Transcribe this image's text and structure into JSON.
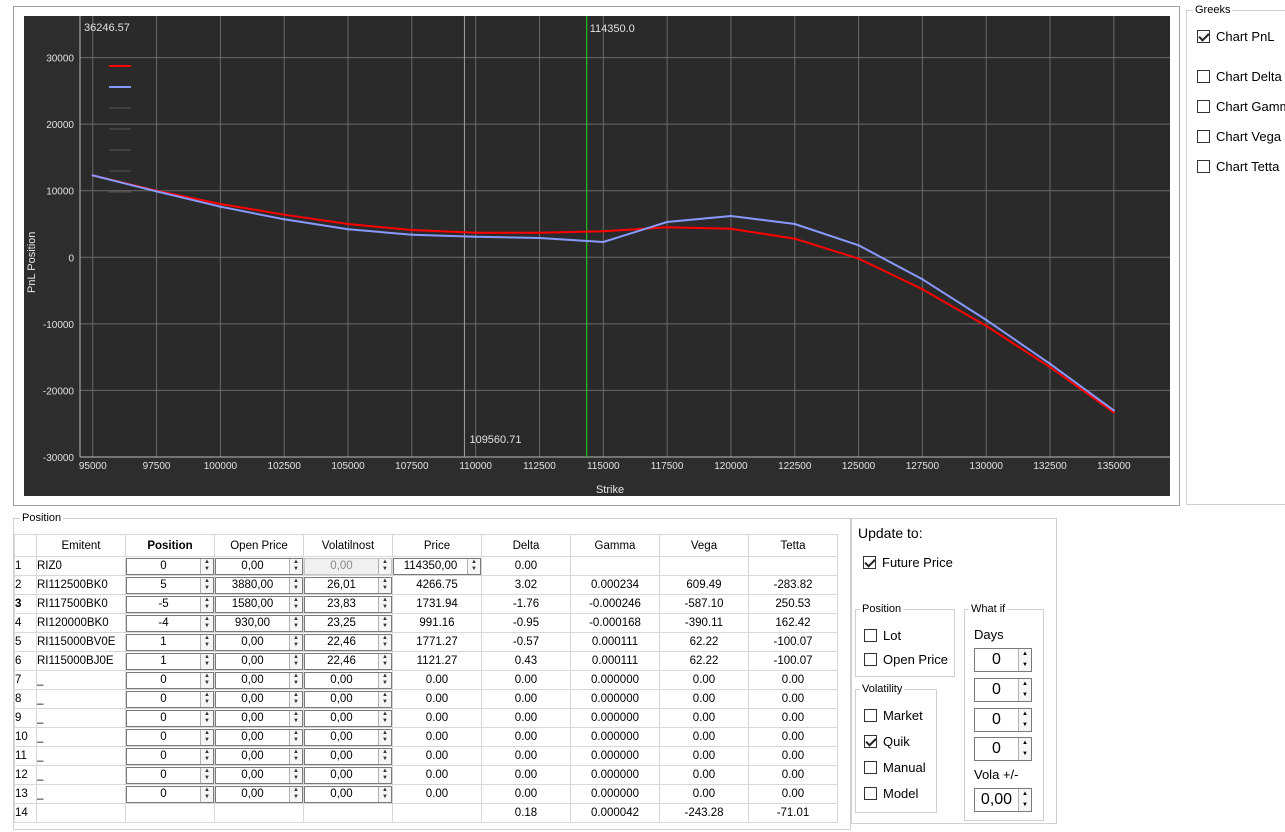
{
  "chart_data": {
    "type": "line",
    "xlabel": "Strike",
    "ylabel": "PnL Position",
    "xlim": [
      94500,
      137200
    ],
    "ylim": [
      -30000,
      36246.57
    ],
    "x_ticks": [
      "95000",
      "97500",
      "100000",
      "102500",
      "105000",
      "107500",
      "110000",
      "112500",
      "115000",
      "117500",
      "120000",
      "122500",
      "125000",
      "127500",
      "130000",
      "132500",
      "135000"
    ],
    "y_ticks": [
      "30000",
      "20000",
      "10000",
      "0",
      "-10000",
      "-20000",
      "-30000"
    ],
    "top_value_label": "36246.57",
    "vline_green": {
      "x": 114350,
      "label": "114350.0"
    },
    "vline_gray": {
      "x": 109560.71,
      "label": "109560.71"
    },
    "series": [
      {
        "color": "#ff0000",
        "x": [
          95000,
          97500,
          100000,
          102500,
          105000,
          107500,
          110000,
          112500,
          115000,
          117500,
          120000,
          122500,
          125000,
          127500,
          130000,
          132500,
          135000
        ],
        "values": [
          12300,
          10000,
          8000,
          6400,
          5000,
          4100,
          3700,
          3700,
          3900,
          4500,
          4300,
          2800,
          -200,
          -4800,
          -10300,
          -16500,
          -23300
        ]
      },
      {
        "color": "#8899ff",
        "x": [
          95000,
          97500,
          100000,
          102500,
          105000,
          107500,
          110000,
          112500,
          115000,
          117500,
          120000,
          122500,
          125000,
          127500,
          130000,
          132500,
          135000
        ],
        "values": [
          12300,
          9900,
          7600,
          5700,
          4200,
          3400,
          3100,
          2900,
          2300,
          5300,
          6200,
          5000,
          1800,
          -3300,
          -9400,
          -16000,
          -23000
        ]
      }
    ]
  },
  "greeks": {
    "title": "Greeks",
    "items": [
      {
        "label": "Chart PnL",
        "checked": true
      },
      {
        "label": "Chart Delta",
        "checked": false
      },
      {
        "label": "Chart Gamma",
        "checked": false
      },
      {
        "label": "Chart Vega",
        "checked": false
      },
      {
        "label": "Chart Tetta",
        "checked": false
      }
    ]
  },
  "position": {
    "title": "Position",
    "headers": [
      "Emitent",
      "Position",
      "Open Price",
      "Volatilnost",
      "Price",
      "Delta",
      "Gamma",
      "Vega",
      "Tetta"
    ],
    "rows": [
      {
        "n": "1",
        "emitent": "RIZ0",
        "position": "0",
        "open_price": "0,00",
        "vol": "0,00",
        "price": "114350,00",
        "delta": "0.00",
        "gamma": "",
        "vega": "",
        "tetta": ""
      },
      {
        "n": "2",
        "emitent": "RI112500BK0",
        "position": "5",
        "open_price": "3880,00",
        "vol": "26,01",
        "price": "4266.75",
        "delta": "3.02",
        "gamma": "0.000234",
        "vega": "609.49",
        "tetta": "-283.82"
      },
      {
        "n": "3",
        "emitent": "RI117500BK0",
        "position": "-5",
        "open_price": "1580,00",
        "vol": "23,83",
        "price": "1731.94",
        "delta": "-1.76",
        "gamma": "-0.000246",
        "vega": "-587.10",
        "tetta": "250.53"
      },
      {
        "n": "4",
        "emitent": "RI120000BK0",
        "position": "-4",
        "open_price": "930,00",
        "vol": "23,25",
        "price": "991.16",
        "delta": "-0.95",
        "gamma": "-0.000168",
        "vega": "-390.11",
        "tetta": "162.42"
      },
      {
        "n": "5",
        "emitent": "RI115000BV0E",
        "position": "1",
        "open_price": "0,00",
        "vol": "22,46",
        "price": "1771.27",
        "delta": "-0.57",
        "gamma": "0.000111",
        "vega": "62.22",
        "tetta": "-100.07"
      },
      {
        "n": "6",
        "emitent": "RI115000BJ0E",
        "position": "1",
        "open_price": "0,00",
        "vol": "22,46",
        "price": "1121.27",
        "delta": "0.43",
        "gamma": "0.000111",
        "vega": "62.22",
        "tetta": "-100.07"
      },
      {
        "n": "7",
        "emitent": "_",
        "position": "0",
        "open_price": "0,00",
        "vol": "0,00",
        "price": "0.00",
        "delta": "0.00",
        "gamma": "0.000000",
        "vega": "0.00",
        "tetta": "0.00"
      },
      {
        "n": "8",
        "emitent": "_",
        "position": "0",
        "open_price": "0,00",
        "vol": "0,00",
        "price": "0.00",
        "delta": "0.00",
        "gamma": "0.000000",
        "vega": "0.00",
        "tetta": "0.00"
      },
      {
        "n": "9",
        "emitent": "_",
        "position": "0",
        "open_price": "0,00",
        "vol": "0,00",
        "price": "0.00",
        "delta": "0.00",
        "gamma": "0.000000",
        "vega": "0.00",
        "tetta": "0.00"
      },
      {
        "n": "10",
        "emitent": "_",
        "position": "0",
        "open_price": "0,00",
        "vol": "0,00",
        "price": "0.00",
        "delta": "0.00",
        "gamma": "0.000000",
        "vega": "0.00",
        "tetta": "0.00"
      },
      {
        "n": "11",
        "emitent": "_",
        "position": "0",
        "open_price": "0,00",
        "vol": "0,00",
        "price": "0.00",
        "delta": "0.00",
        "gamma": "0.000000",
        "vega": "0.00",
        "tetta": "0.00"
      },
      {
        "n": "12",
        "emitent": "_",
        "position": "0",
        "open_price": "0,00",
        "vol": "0,00",
        "price": "0.00",
        "delta": "0.00",
        "gamma": "0.000000",
        "vega": "0.00",
        "tetta": "0.00"
      },
      {
        "n": "13",
        "emitent": "_",
        "position": "0",
        "open_price": "0,00",
        "vol": "0,00",
        "price": "0.00",
        "delta": "0.00",
        "gamma": "0.000000",
        "vega": "0.00",
        "tetta": "0.00"
      }
    ],
    "total": {
      "n": "14",
      "delta": "0.18",
      "gamma": "0.000042",
      "vega": "-243.28",
      "tetta": "-71.01"
    }
  },
  "update": {
    "title": "Update to:",
    "future_price": {
      "label": "Future Price",
      "checked": true
    },
    "position_group": {
      "title": "Position",
      "lot": {
        "label": "Lot",
        "checked": false
      },
      "open_price": {
        "label": "Open Price",
        "checked": false
      }
    },
    "volatility_group": {
      "title": "Volatility",
      "items": [
        {
          "label": "Market",
          "checked": false
        },
        {
          "label": "Quik",
          "checked": true
        },
        {
          "label": "Manual",
          "checked": false
        },
        {
          "label": "Model",
          "checked": false
        }
      ]
    },
    "whatif_group": {
      "title": "What if",
      "days_label": "Days",
      "days_values": [
        "0",
        "0",
        "0",
        "0"
      ],
      "vola_label": "Vola +/-",
      "vola_value": "0,00"
    }
  }
}
